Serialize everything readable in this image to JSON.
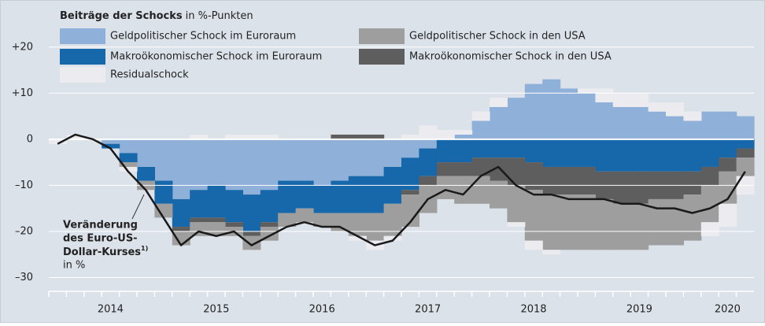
{
  "chart_data": {
    "type": "stacked_area_line",
    "legend_title": "Beiträge der Schocks",
    "legend_unit": "in %-Punkten",
    "categories": [
      null,
      null,
      null,
      "2014",
      null,
      null,
      null,
      null,
      null,
      "2015",
      null,
      null,
      null,
      null,
      null,
      "2016",
      null,
      null,
      null,
      null,
      null,
      "2017",
      null,
      null,
      null,
      null,
      null,
      "2018",
      null,
      null,
      null,
      null,
      null,
      "2019",
      null,
      null,
      null,
      null,
      "2020",
      null
    ],
    "series": [
      {
        "name": "Geldpolitischer Schock im Euroraum",
        "color": "#8fb1d9",
        "values": [
          0,
          0,
          0,
          -1,
          -3,
          -6,
          -9,
          -13,
          -11,
          -10,
          -11,
          -12,
          -11,
          -9,
          -9,
          -10,
          -9,
          -8,
          -8,
          -6,
          -4,
          -2,
          0,
          1,
          4,
          7,
          9,
          12,
          13,
          11,
          10,
          8,
          7,
          7,
          6,
          5,
          4,
          6,
          6,
          5
        ]
      },
      {
        "name": "Makroökonomischer Schock im Euroraum",
        "color": "#1767ab",
        "values": [
          0,
          0,
          0,
          -1,
          -2,
          -3,
          -5,
          -6,
          -6,
          -7,
          -7,
          -8,
          -7,
          -7,
          -6,
          -6,
          -7,
          -8,
          -8,
          -8,
          -7,
          -6,
          -5,
          -5,
          -4,
          -4,
          -4,
          -5,
          -6,
          -6,
          -6,
          -7,
          -7,
          -7,
          -7,
          -7,
          -7,
          -6,
          -4,
          -2
        ]
      },
      {
        "name": "Makroökonomischer Schock in den USA",
        "color": "#5e5e5e",
        "values": [
          0,
          0,
          0,
          0,
          0,
          0,
          0,
          -1,
          -1,
          -1,
          -1,
          -1,
          -1,
          0,
          0,
          0,
          1,
          1,
          1,
          0,
          -1,
          -2,
          -3,
          -3,
          -4,
          -5,
          -6,
          -6,
          -6,
          -6,
          -6,
          -6,
          -7,
          -7,
          -6,
          -6,
          -5,
          -4,
          -3,
          -2
        ]
      },
      {
        "name": "Geldpolitischer Schock in den USA",
        "color": "#9e9e9e",
        "values": [
          0,
          0,
          0,
          0,
          -1,
          -2,
          -3,
          -3,
          -3,
          -3,
          -2,
          -3,
          -3,
          -3,
          -3,
          -3,
          -4,
          -5,
          -6,
          -7,
          -7,
          -6,
          -5,
          -6,
          -6,
          -6,
          -8,
          -11,
          -12,
          -12,
          -12,
          -11,
          -10,
          -10,
          -10,
          -10,
          -10,
          -8,
          -7,
          -4
        ]
      },
      {
        "name": "Residualschock",
        "color": "#ececf0",
        "values": [
          -1,
          1,
          0,
          0,
          -1,
          0,
          0,
          0,
          1,
          0,
          1,
          1,
          1,
          0,
          0,
          0,
          0,
          -1,
          -2,
          -1,
          1,
          3,
          2,
          1,
          2,
          2,
          -1,
          -2,
          -1,
          0,
          1,
          3,
          3,
          3,
          2,
          3,
          2,
          -3,
          -5,
          -4
        ]
      }
    ],
    "line": {
      "color": "#1a1a1a",
      "values": [
        -1,
        1,
        0,
        -2,
        -7,
        -11,
        -17,
        -23,
        -20,
        -21,
        -20,
        -23,
        -21,
        -19,
        -18,
        -19,
        -19,
        -21,
        -23,
        -22,
        -18,
        -13,
        -11,
        -12,
        -8,
        -6,
        -10,
        -12,
        -12,
        -13,
        -13,
        -13,
        -14,
        -14,
        -15,
        -15,
        -16,
        -15,
        -13,
        -7
      ]
    },
    "annotation": {
      "lines": [
        "Veränderung",
        "des Euro-US-",
        "Dollar-Kurses"
      ],
      "footnote": "1)",
      "unit": "in %"
    },
    "ylim": [
      -33,
      28.5
    ],
    "yticks": [
      {
        "value": 20,
        "label": "+20"
      },
      {
        "value": 10,
        "label": "+10"
      },
      0,
      {
        "value": -10,
        "label": "–10"
      },
      {
        "value": -20,
        "label": "–20"
      },
      {
        "value": -30,
        "label": "–30"
      }
    ],
    "grid": true,
    "background": "#dce2e9"
  }
}
